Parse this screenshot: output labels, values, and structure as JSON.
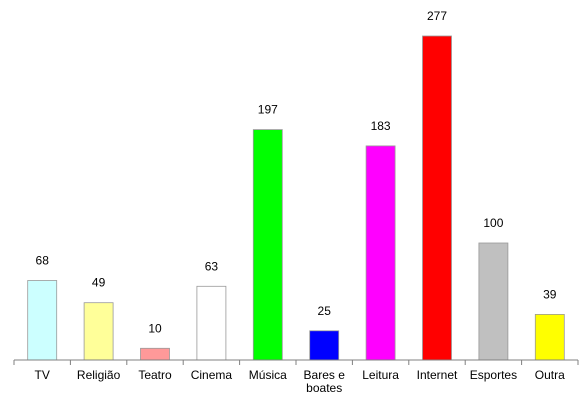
{
  "chart_data": {
    "type": "bar",
    "categories": [
      "TV",
      "Religião",
      "Teatro",
      "Cinema",
      "Música",
      "Bares e boates",
      "Leitura",
      "Internet",
      "Esportes",
      "Outra"
    ],
    "category_label_lines": [
      [
        "TV"
      ],
      [
        "Religião"
      ],
      [
        "Teatro"
      ],
      [
        "Cinema"
      ],
      [
        "Música"
      ],
      [
        "Bares e",
        "boates"
      ],
      [
        "Leitura"
      ],
      [
        "Internet"
      ],
      [
        "Esportes"
      ],
      [
        "Outra"
      ]
    ],
    "values": [
      68,
      49,
      10,
      63,
      197,
      25,
      183,
      277,
      100,
      39
    ],
    "data_labels": [
      "68",
      "49",
      "10",
      "63",
      "197",
      "25",
      "183",
      "277",
      "100",
      "39"
    ],
    "colors": [
      "#ccffff",
      "#ffff99",
      "#ff9999",
      "#ffffff",
      "#00ff00",
      "#0000ff",
      "#ff00ff",
      "#ff0000",
      "#c0c0c0",
      "#ffff00"
    ],
    "title": "",
    "xlabel": "",
    "ylabel": "",
    "ylim": [
      0,
      277
    ],
    "grid": false,
    "legend": "none"
  }
}
